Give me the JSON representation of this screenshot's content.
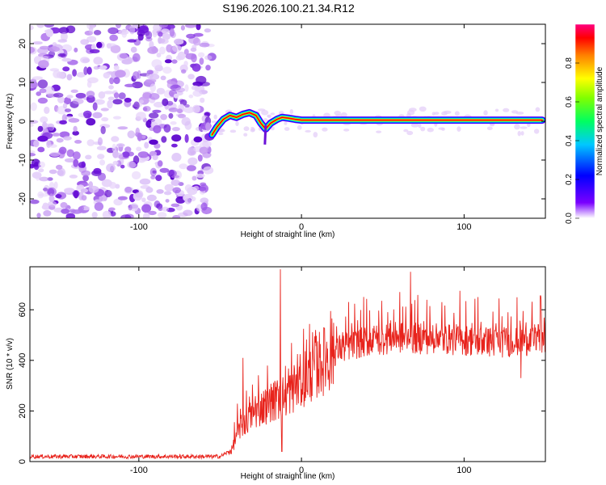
{
  "title": "S196.2026.100.21.34.R12",
  "chart_data": [
    {
      "type": "heatmap",
      "xlabel": "Height of straight line (km)",
      "ylabel": "Frequency (Hz)",
      "xlim": [
        -167,
        150
      ],
      "ylim": [
        -25,
        25
      ],
      "xticks": [
        -100,
        0,
        100
      ],
      "yticks": [
        -20,
        -10,
        0,
        10,
        20
      ],
      "noise_region_x": [
        -167,
        -55
      ],
      "colorbar": {
        "label": "Normalized spectral amplitude",
        "range": [
          0,
          1
        ],
        "ticks": [
          0.0,
          0.2,
          0.4,
          0.6,
          0.8
        ]
      },
      "ridge": [
        {
          "x": -55,
          "y": -3.5
        },
        {
          "x": -52,
          "y": -1.5
        },
        {
          "x": -48,
          "y": 0.5
        },
        {
          "x": -44,
          "y": 1.5
        },
        {
          "x": -40,
          "y": 1.0
        },
        {
          "x": -36,
          "y": 1.8
        },
        {
          "x": -32,
          "y": 2.2
        },
        {
          "x": -28,
          "y": 1.5
        },
        {
          "x": -25,
          "y": -0.5
        },
        {
          "x": -22,
          "y": -2.0
        },
        {
          "x": -19,
          "y": -0.5
        },
        {
          "x": -15,
          "y": 0.5
        },
        {
          "x": -12,
          "y": 1.0
        },
        {
          "x": -8,
          "y": 0.8
        },
        {
          "x": -4,
          "y": 0.5
        },
        {
          "x": 0,
          "y": 0.3
        },
        {
          "x": 50,
          "y": 0.3
        },
        {
          "x": 100,
          "y": 0.3
        },
        {
          "x": 148,
          "y": 0.3
        }
      ]
    },
    {
      "type": "line",
      "xlabel": "Height of straight line (km)",
      "ylabel": "SNR (10 * v/v)",
      "xlim": [
        -167,
        150
      ],
      "ylim": [
        0,
        770
      ],
      "xticks": [
        -100,
        0,
        100
      ],
      "yticks": [
        0,
        200,
        400,
        600
      ],
      "series": [
        {
          "name": "SNR",
          "color": "#e8231c",
          "envelope": [
            {
              "x": -167,
              "y": 20
            },
            {
              "x": -50,
              "y": 20
            },
            {
              "x": -43,
              "y": 45
            },
            {
              "x": -38,
              "y": 130
            },
            {
              "x": -30,
              "y": 190
            },
            {
              "x": -20,
              "y": 230
            },
            {
              "x": -10,
              "y": 260
            },
            {
              "x": 0,
              "y": 320
            },
            {
              "x": 10,
              "y": 380
            },
            {
              "x": 20,
              "y": 430
            },
            {
              "x": 30,
              "y": 460
            },
            {
              "x": 45,
              "y": 480
            },
            {
              "x": 60,
              "y": 490
            },
            {
              "x": 80,
              "y": 485
            },
            {
              "x": 100,
              "y": 480
            },
            {
              "x": 120,
              "y": 470
            },
            {
              "x": 140,
              "y": 480
            },
            {
              "x": 150,
              "y": 490
            }
          ],
          "spikes": [
            {
              "x": -36,
              "y": 410
            },
            {
              "x": -13,
              "y": 760
            },
            {
              "x": 67,
              "y": 750
            },
            {
              "x": 147,
              "y": 655
            }
          ],
          "dips": [
            {
              "x": -12,
              "y": 40
            },
            {
              "x": 135,
              "y": 330
            }
          ]
        }
      ]
    }
  ]
}
